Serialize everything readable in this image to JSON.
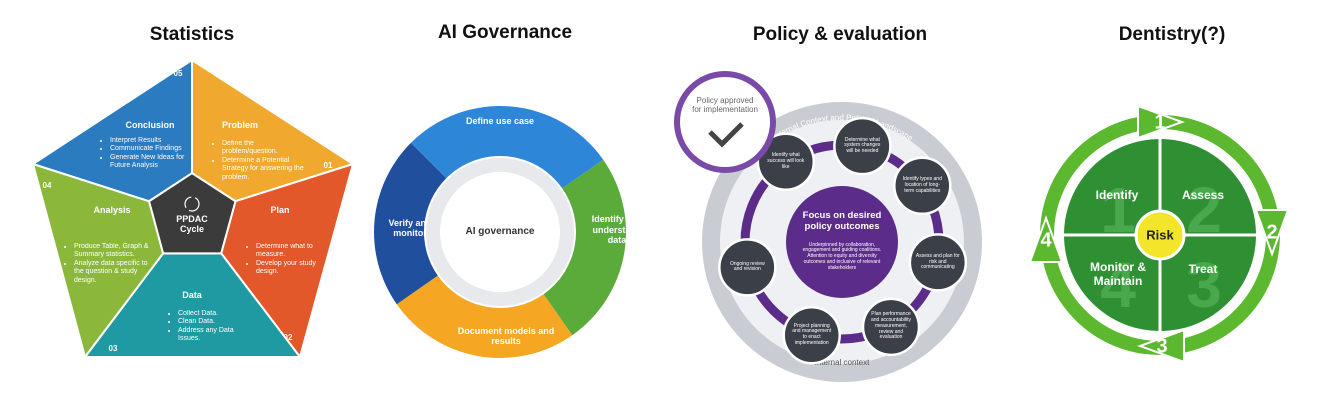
{
  "panels": [
    {
      "title": "Statistics",
      "center": "PPDAC Cycle",
      "segments": [
        {
          "number": "01",
          "title": "Problem",
          "bullets": [
            "Define the problem/question.",
            "Determine a Potential Strategy for answering the problem."
          ]
        },
        {
          "number": "02",
          "title": "Plan",
          "bullets": [
            "Determine what to measure.",
            "Develop your study design."
          ]
        },
        {
          "number": "03",
          "title": "Data",
          "bullets": [
            "Collect Data.",
            "Clean Data.",
            "Address any Data Issues."
          ]
        },
        {
          "number": "04",
          "title": "Analysis",
          "bullets": [
            "Produce Table, Graph & Summary statistics.",
            "Analyze data specific to the question & study design."
          ]
        },
        {
          "number": "05",
          "title": "Conclusion",
          "bullets": [
            "Interpret Results",
            "Communicate Findings",
            "Generate New Ideas for Future Analysis"
          ]
        }
      ]
    },
    {
      "title": "AI Governance",
      "center": "AI governance",
      "segments": [
        "Define use case",
        "Identify and understand data",
        "Document models and results",
        "Verify and monitor"
      ]
    },
    {
      "title": "Policy & evaluation",
      "badge": "Policy approved for implementation",
      "outer_label": "External Context and Political Landscape",
      "inner_label": "Internal context",
      "center": {
        "title": "Focus on desired policy outcomes",
        "text": "Underpinned by collaboration, engagement and guiding coalitions. Attention to equity and diversity outcomes and inclusive of relevant stakeholders"
      },
      "steps": [
        "Identify what success will look like",
        "Determine what system changes will be needed",
        "Identify types and location of long-term capabilities",
        "Assess and plan for risk and communicating",
        "Plan performance and accountability measurement, review and evaluation",
        "Project planning and management to enact implementation",
        "Ongoing review and revision"
      ]
    },
    {
      "title": "Dentistry(?)",
      "center": "Risk",
      "quadrants": [
        {
          "number": "1",
          "label": "Identify"
        },
        {
          "number": "2",
          "label": "Assess"
        },
        {
          "number": "3",
          "label": "Treat"
        },
        {
          "number": "4",
          "label": "Monitor & Maintain"
        }
      ]
    }
  ]
}
